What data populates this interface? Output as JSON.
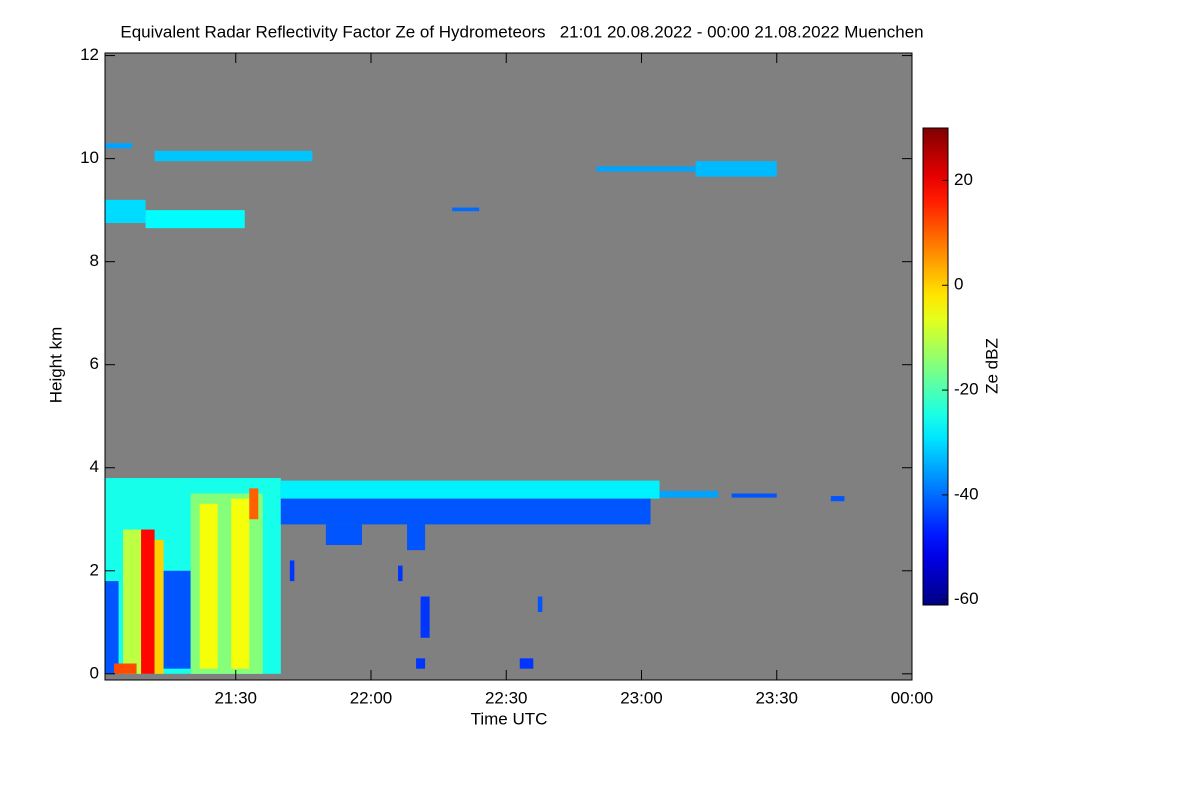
{
  "chart_data": {
    "type": "heatmap",
    "title": "Equivalent Radar Reflectivity Factor Ze of Hydrometeors   21:01 20.08.2022 - 00:00 21.08.2022 Muenchen",
    "xlabel": "Time UTC",
    "ylabel": "Height km",
    "colorbar_label": "Ze dBZ",
    "colormap": "jet",
    "background_color": "#808080",
    "xlim": [
      1,
      180
    ],
    "xticks": [
      {
        "value": 30,
        "label": "21:30"
      },
      {
        "value": 60,
        "label": "22:00"
      },
      {
        "value": 90,
        "label": "22:30"
      },
      {
        "value": 120,
        "label": "23:00"
      },
      {
        "value": 150,
        "label": "23:30"
      },
      {
        "value": 180,
        "label": "00:00"
      }
    ],
    "ylim": [
      -0.12,
      12.05
    ],
    "yticks": [
      0,
      2,
      4,
      6,
      8,
      10,
      12
    ],
    "zlim": [
      -61,
      30
    ],
    "zticks": [
      -60,
      -40,
      -20,
      0,
      20
    ],
    "patches": [
      {
        "x0": 1,
        "x1": 10,
        "y0": 8.75,
        "y1": 9.2,
        "value": -30
      },
      {
        "x0": 10,
        "x1": 32,
        "y0": 8.65,
        "y1": 9.0,
        "value": -27
      },
      {
        "x0": 1,
        "x1": 7,
        "y0": 10.2,
        "y1": 10.3,
        "value": -35
      },
      {
        "x0": 12,
        "x1": 47,
        "y0": 9.95,
        "y1": 10.15,
        "value": -32
      },
      {
        "x0": 110,
        "x1": 148,
        "y0": 9.75,
        "y1": 9.85,
        "value": -35
      },
      {
        "x0": 132,
        "x1": 150,
        "y0": 9.65,
        "y1": 9.95,
        "value": -33
      },
      {
        "x0": 78,
        "x1": 84,
        "y0": 8.98,
        "y1": 9.05,
        "value": -40
      },
      {
        "x0": 1,
        "x1": 40,
        "y0": 0,
        "y1": 3.8,
        "value": -25
      },
      {
        "x0": 1,
        "x1": 4,
        "y0": 0,
        "y1": 1.8,
        "value": -42
      },
      {
        "x0": 5,
        "x1": 10,
        "y0": 0,
        "y1": 2.8,
        "value": -10
      },
      {
        "x0": 9,
        "x1": 12,
        "y0": 0,
        "y1": 2.8,
        "value": 18
      },
      {
        "x0": 12,
        "x1": 14,
        "y0": 0,
        "y1": 2.6,
        "value": 0
      },
      {
        "x0": 3,
        "x1": 8,
        "y0": 0,
        "y1": 0.2,
        "value": 12
      },
      {
        "x0": 14,
        "x1": 20,
        "y0": 0.1,
        "y1": 2.0,
        "value": -42
      },
      {
        "x0": 20,
        "x1": 36,
        "y0": 0,
        "y1": 3.5,
        "value": -15
      },
      {
        "x0": 22,
        "x1": 26,
        "y0": 0.1,
        "y1": 3.3,
        "value": -5
      },
      {
        "x0": 29,
        "x1": 33,
        "y0": 0.1,
        "y1": 3.4,
        "value": -5
      },
      {
        "x0": 33,
        "x1": 35,
        "y0": 3.0,
        "y1": 3.6,
        "value": 10
      },
      {
        "x0": 40,
        "x1": 124,
        "y0": 3.4,
        "y1": 3.75,
        "value": -28
      },
      {
        "x0": 40,
        "x1": 122,
        "y0": 2.9,
        "y1": 3.4,
        "value": -42
      },
      {
        "x0": 50,
        "x1": 58,
        "y0": 2.5,
        "y1": 2.9,
        "value": -42
      },
      {
        "x0": 68,
        "x1": 72,
        "y0": 2.4,
        "y1": 2.9,
        "value": -42
      },
      {
        "x0": 124,
        "x1": 137,
        "y0": 3.42,
        "y1": 3.55,
        "value": -35
      },
      {
        "x0": 140,
        "x1": 150,
        "y0": 3.42,
        "y1": 3.5,
        "value": -42
      },
      {
        "x0": 162,
        "x1": 165,
        "y0": 3.35,
        "y1": 3.45,
        "value": -42
      },
      {
        "x0": 70,
        "x1": 72,
        "y0": 0.1,
        "y1": 0.3,
        "value": -45
      },
      {
        "x0": 71,
        "x1": 73,
        "y0": 0.7,
        "y1": 1.5,
        "value": -45
      },
      {
        "x0": 97,
        "x1": 98,
        "y0": 1.2,
        "y1": 1.5,
        "value": -42
      },
      {
        "x0": 66,
        "x1": 67,
        "y0": 1.8,
        "y1": 2.1,
        "value": -45
      },
      {
        "x0": 42,
        "x1": 43,
        "y0": 1.8,
        "y1": 2.2,
        "value": -45
      },
      {
        "x0": 93,
        "x1": 96,
        "y0": 0.1,
        "y1": 0.3,
        "value": -45
      }
    ]
  }
}
